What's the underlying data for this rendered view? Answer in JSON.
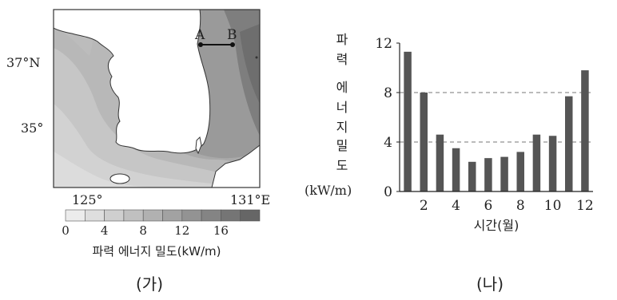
{
  "map": {
    "caption": "(가)",
    "lat_labels": [
      "37°N",
      "35°"
    ],
    "lon_labels": [
      "125°",
      "131°E"
    ],
    "point_a": "A",
    "point_b": "B",
    "colorbar": {
      "ticks": [
        "0",
        "4",
        "8",
        "12",
        "16"
      ],
      "label": "파력 에너지 밀도(kW/m)",
      "colors": [
        "#ececec",
        "#dedede",
        "#cfcfcf",
        "#c0c0c0",
        "#b1b1b1",
        "#a2a2a2",
        "#939393",
        "#848484",
        "#757575",
        "#666666"
      ]
    }
  },
  "chart": {
    "caption": "(나)",
    "ylabel_chars": [
      "파",
      "력",
      "에",
      "너",
      "지",
      "밀",
      "도"
    ],
    "ylabel_unit": "(kW/m)",
    "xlabel": "시간(월)"
  },
  "chart_data": {
    "type": "bar",
    "categories": [
      "1",
      "2",
      "3",
      "4",
      "5",
      "6",
      "7",
      "8",
      "9",
      "10",
      "11",
      "12"
    ],
    "values": [
      11.3,
      8.0,
      4.6,
      3.5,
      2.4,
      2.7,
      2.8,
      3.2,
      4.6,
      4.5,
      7.7,
      9.8
    ],
    "ylim": [
      0,
      12
    ],
    "yticks": [
      "0",
      "4",
      "8",
      "12"
    ],
    "xticks": [
      "2",
      "4",
      "6",
      "8",
      "10",
      "12"
    ],
    "gridlines": [
      4,
      8
    ],
    "bar_color": "#555555"
  }
}
